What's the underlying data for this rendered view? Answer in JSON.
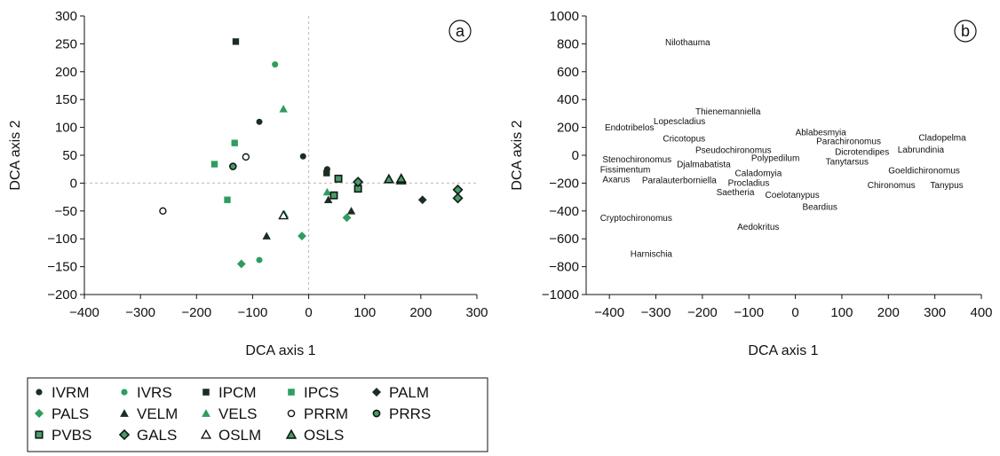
{
  "chart_data": [
    {
      "panel": "a",
      "type": "scatter",
      "xlabel": "DCA axis 1",
      "ylabel": "DCA axis 2",
      "xlim": [
        -400,
        300
      ],
      "ylim": [
        -200,
        300
      ],
      "xticks": [
        "−400",
        "−300",
        "−200",
        "−100",
        "0",
        "100",
        "200",
        "300"
      ],
      "yticks": [
        "300",
        "250",
        "200",
        "150",
        "100",
        "50",
        "0",
        "−50",
        "−100",
        "−150",
        "−200"
      ],
      "reference_lines": "dotted at x=0 and y=0",
      "legend_placement": "bottom-left",
      "series": [
        {
          "name": "IVRM",
          "marker": "circle",
          "color": "#1b2e22",
          "points": [
            [
              -88,
              110
            ],
            [
              -10,
              48
            ],
            [
              33,
              25
            ]
          ]
        },
        {
          "name": "IVRS",
          "marker": "circle",
          "color": "#2e9d5e",
          "points": [
            [
              -60,
              213
            ],
            [
              -88,
              -138
            ]
          ]
        },
        {
          "name": "IPCM",
          "marker": "square",
          "color": "#1b2e22",
          "points": [
            [
              -130,
              254
            ],
            [
              32,
              18
            ]
          ]
        },
        {
          "name": "IPCS",
          "marker": "square",
          "color": "#2e9d5e",
          "points": [
            [
              -132,
              72
            ],
            [
              -168,
              34
            ],
            [
              -145,
              -30
            ]
          ]
        },
        {
          "name": "PALM",
          "marker": "diamond",
          "color": "#1b2e22",
          "points": [
            [
              203,
              -30
            ]
          ]
        },
        {
          "name": "PALS",
          "marker": "diamond",
          "color": "#2e9d5e",
          "points": [
            [
              -12,
              -95
            ],
            [
              -120,
              -145
            ],
            [
              68,
              -62
            ]
          ]
        },
        {
          "name": "VELM",
          "marker": "triangle",
          "color": "#1b2e22",
          "points": [
            [
              -75,
              -95
            ],
            [
              35,
              -30
            ],
            [
              76,
              -50
            ]
          ]
        },
        {
          "name": "VELS",
          "marker": "triangle",
          "color": "#2e9d5e",
          "points": [
            [
              -45,
              133
            ],
            [
              33,
              -16
            ],
            [
              -43,
              -56
            ]
          ]
        },
        {
          "name": "PRRM",
          "marker": "circle-open",
          "color": "#ffffff",
          "points": [
            [
              -260,
              -50
            ],
            [
              -112,
              47
            ]
          ]
        },
        {
          "name": "PRRS",
          "marker": "circle-outlined",
          "color": "#4a9a6a",
          "points": [
            [
              -135,
              30
            ]
          ]
        },
        {
          "name": "PVBS",
          "marker": "square-outlined",
          "color": "#4a9a6a",
          "points": [
            [
              45,
              -22
            ],
            [
              53,
              8
            ],
            [
              88,
              -10
            ]
          ]
        },
        {
          "name": "GALS",
          "marker": "diamond-outlined",
          "color": "#4a9a6a",
          "points": [
            [
              88,
              2
            ],
            [
              266,
              -12
            ],
            [
              266,
              -27
            ]
          ]
        },
        {
          "name": "OSLM",
          "marker": "triangle-open",
          "color": "#ffffff",
          "points": [
            [
              -45,
              -58
            ]
          ]
        },
        {
          "name": "OSLS",
          "marker": "triangle-outlined",
          "color": "#4a9a6a",
          "points": [
            [
              143,
              7
            ],
            [
              165,
              5
            ],
            [
              165,
              8
            ]
          ]
        }
      ]
    },
    {
      "panel": "b",
      "type": "scatter",
      "xlabel": "DCA axis 1",
      "ylabel": "DCA axis 2",
      "xlim": [
        -450,
        400
      ],
      "ylim": [
        -1000,
        1000
      ],
      "xticks": [
        "−400",
        "−300",
        "−200",
        "−100",
        "0",
        "100",
        "200",
        "300",
        "400"
      ],
      "yticks": [
        "1000",
        "800",
        "600",
        "400",
        "200",
        "0",
        "−200",
        "−400",
        "−600",
        "−800",
        "−1000"
      ],
      "labels": [
        {
          "text": "Nilothauma",
          "x": -280,
          "y": 815
        },
        {
          "text": "Thienemanniella",
          "x": -215,
          "y": 320
        },
        {
          "text": "Lopescladius",
          "x": -305,
          "y": 250
        },
        {
          "text": "Endotribelos",
          "x": -410,
          "y": 205
        },
        {
          "text": "Cricotopus",
          "x": -285,
          "y": 125
        },
        {
          "text": "Pseudochironomus",
          "x": -215,
          "y": 40
        },
        {
          "text": "Ablabesmyia",
          "x": 0,
          "y": 170
        },
        {
          "text": "Parachironomus",
          "x": 45,
          "y": 105
        },
        {
          "text": "Dicrotendipes",
          "x": 85,
          "y": 30
        },
        {
          "text": "Cladopelma",
          "x": 265,
          "y": 130
        },
        {
          "text": "Labrundinia",
          "x": 220,
          "y": 45
        },
        {
          "text": "Polypedilum",
          "x": -95,
          "y": -15
        },
        {
          "text": "Tanytarsus",
          "x": 65,
          "y": -40
        },
        {
          "text": "Stenochironomus",
          "x": -415,
          "y": -25
        },
        {
          "text": "Djalmabatista",
          "x": -255,
          "y": -60
        },
        {
          "text": "Fissimentum",
          "x": -420,
          "y": -100
        },
        {
          "text": "Caladomyia",
          "x": -130,
          "y": -125
        },
        {
          "text": "Goeldichironomus",
          "x": 200,
          "y": -105
        },
        {
          "text": "Axarus",
          "x": -415,
          "y": -170
        },
        {
          "text": "Paralauterborniella",
          "x": -330,
          "y": -175
        },
        {
          "text": "Procladius",
          "x": -145,
          "y": -195
        },
        {
          "text": "Chironomus",
          "x": 155,
          "y": -210
        },
        {
          "text": "Tanypus",
          "x": 290,
          "y": -210
        },
        {
          "text": "Saetheria",
          "x": -170,
          "y": -260
        },
        {
          "text": "Coelotanypus",
          "x": -65,
          "y": -280
        },
        {
          "text": "Beardius",
          "x": 15,
          "y": -365
        },
        {
          "text": "Cryptochironomus",
          "x": -420,
          "y": -445
        },
        {
          "text": "Aedokritus",
          "x": -125,
          "y": -510
        },
        {
          "text": "Harnischia",
          "x": -355,
          "y": -705
        }
      ]
    }
  ],
  "legend": {
    "columns": 5,
    "items": [
      {
        "label": "IVRM",
        "marker": "circle",
        "color": "#1b2e22"
      },
      {
        "label": "IVRS",
        "marker": "circle",
        "color": "#2e9d5e"
      },
      {
        "label": "IPCM",
        "marker": "square",
        "color": "#1b2e22"
      },
      {
        "label": "IPCS",
        "marker": "square",
        "color": "#2e9d5e"
      },
      {
        "label": "PALM",
        "marker": "diamond",
        "color": "#1b2e22"
      },
      {
        "label": "PALS",
        "marker": "diamond",
        "color": "#2e9d5e"
      },
      {
        "label": "VELM",
        "marker": "triangle",
        "color": "#1b2e22"
      },
      {
        "label": "VELS",
        "marker": "triangle",
        "color": "#2e9d5e"
      },
      {
        "label": "PRRM",
        "marker": "circle-open",
        "color": "#ffffff"
      },
      {
        "label": "PRRS",
        "marker": "circle-outlined",
        "color": "#4a9a6a"
      },
      {
        "label": "PVBS",
        "marker": "square-outlined",
        "color": "#4a9a6a"
      },
      {
        "label": "GALS",
        "marker": "diamond-outlined",
        "color": "#4a9a6a"
      },
      {
        "label": "OSLM",
        "marker": "triangle-open",
        "color": "#ffffff"
      },
      {
        "label": "OSLS",
        "marker": "triangle-outlined",
        "color": "#4a9a6a"
      }
    ]
  }
}
